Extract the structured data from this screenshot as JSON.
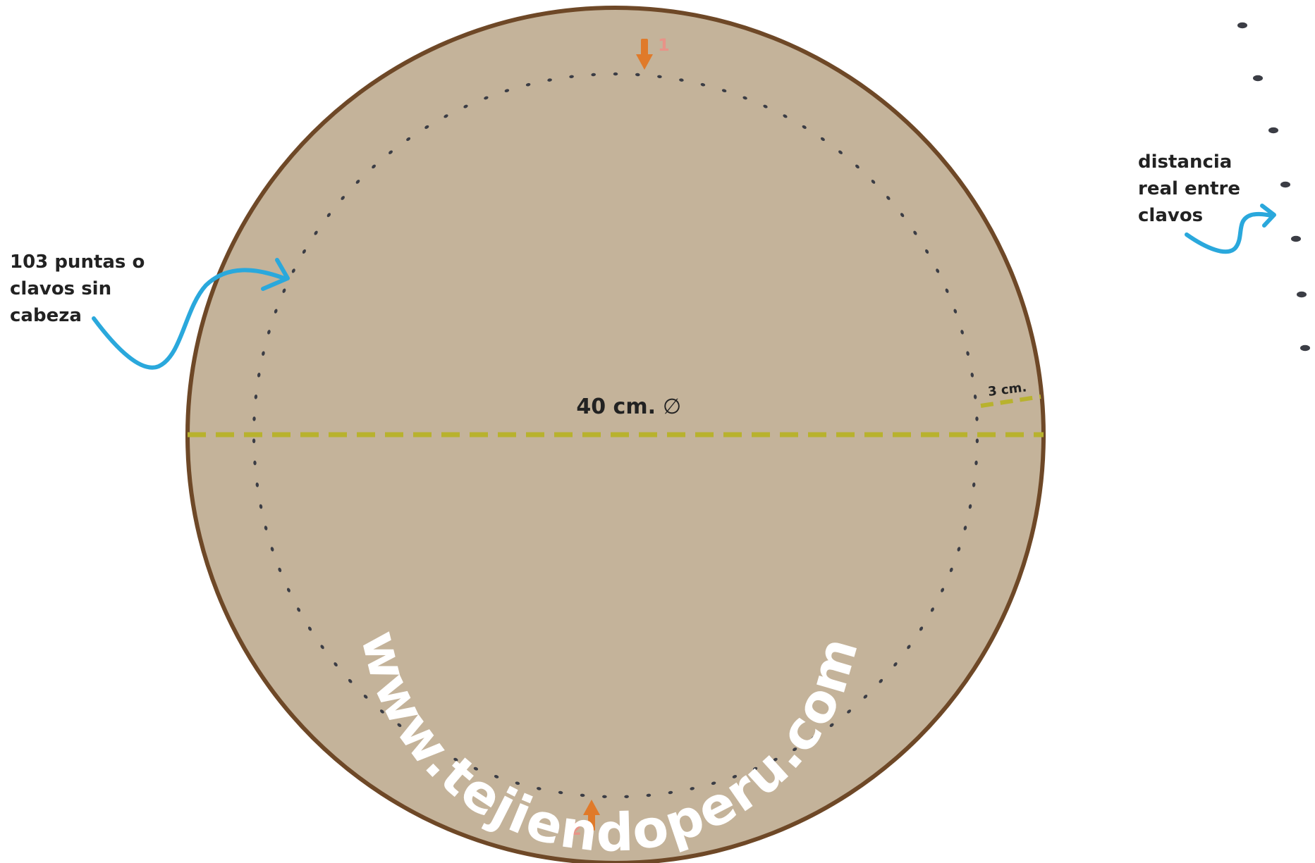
{
  "diagram": {
    "diameter_label": "40 cm.",
    "diameter_symbol": "∅",
    "margin_label": "3 cm.",
    "marker_start": "1",
    "marker_end": "2",
    "nails_label": [
      "103 puntas o",
      "clavos sin",
      "cabeza"
    ],
    "spacing_label": [
      "distancia",
      "real entre",
      "clavos"
    ],
    "watermark": "www.tejiendoperu.com",
    "nail_count": 103,
    "colors": {
      "board_fill": "#c4b39a",
      "board_border": "#6e4827",
      "nail": "#3b3d45",
      "dimension_line": "#b8b22e",
      "pointer_arrow": "#2aa8dc",
      "marker_arrow": "#e07a2a",
      "marker_number": "#e89388",
      "label_text": "#222222",
      "watermark": "#ffffff"
    }
  }
}
